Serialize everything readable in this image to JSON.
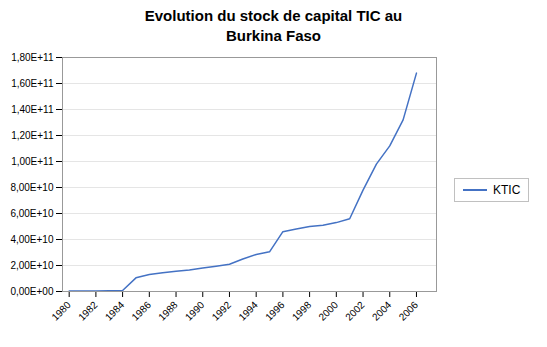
{
  "chart_data": {
    "type": "line",
    "title": "Evolution du stock de capital TIC au\nBurkina Faso",
    "x": [
      1980,
      1981,
      1982,
      1983,
      1984,
      1985,
      1986,
      1987,
      1988,
      1989,
      1990,
      1991,
      1992,
      1993,
      1994,
      1995,
      1996,
      1997,
      1998,
      1999,
      2000,
      2001,
      2002,
      2003,
      2004,
      2005,
      2006
    ],
    "series": [
      {
        "name": "KTIC",
        "color": "#4472C4",
        "values": [
          300000000.0,
          350000000.0,
          400000000.0,
          500000000.0,
          800000000.0,
          10500000000.0,
          13000000000.0,
          14500000000.0,
          15500000000.0,
          16500000000.0,
          18000000000.0,
          19500000000.0,
          21000000000.0,
          25000000000.0,
          28500000000.0,
          30500000000.0,
          46000000000.0,
          48000000000.0,
          50000000000.0,
          51000000000.0,
          53000000000.0,
          56000000000.0,
          78000000000.0,
          98000000000.0,
          112000000000.0,
          132000000000.0,
          168000000000.0
        ]
      }
    ],
    "xlim": [
      1979.5,
      2007.5
    ],
    "xticks": [
      1980,
      1982,
      1984,
      1986,
      1988,
      1990,
      1992,
      1994,
      1996,
      1998,
      2000,
      2002,
      2004,
      2006
    ],
    "ylim": [
      0,
      180000000000.0
    ],
    "yticks": [
      {
        "value": 0,
        "label": "0,00E+00"
      },
      {
        "value": 20000000000.0,
        "label": "2,00E+10"
      },
      {
        "value": 40000000000.0,
        "label": "4,00E+10"
      },
      {
        "value": 60000000000.0,
        "label": "6,00E+10"
      },
      {
        "value": 80000000000.0,
        "label": "8,00E+10"
      },
      {
        "value": 100000000000.0,
        "label": "1,00E+11"
      },
      {
        "value": 120000000000.0,
        "label": "1,20E+11"
      },
      {
        "value": 140000000000.0,
        "label": "1,40E+11"
      },
      {
        "value": 160000000000.0,
        "label": "1,60E+11"
      },
      {
        "value": 180000000000.0,
        "label": "1,80E+11"
      }
    ],
    "grid": true,
    "legend": "right"
  }
}
